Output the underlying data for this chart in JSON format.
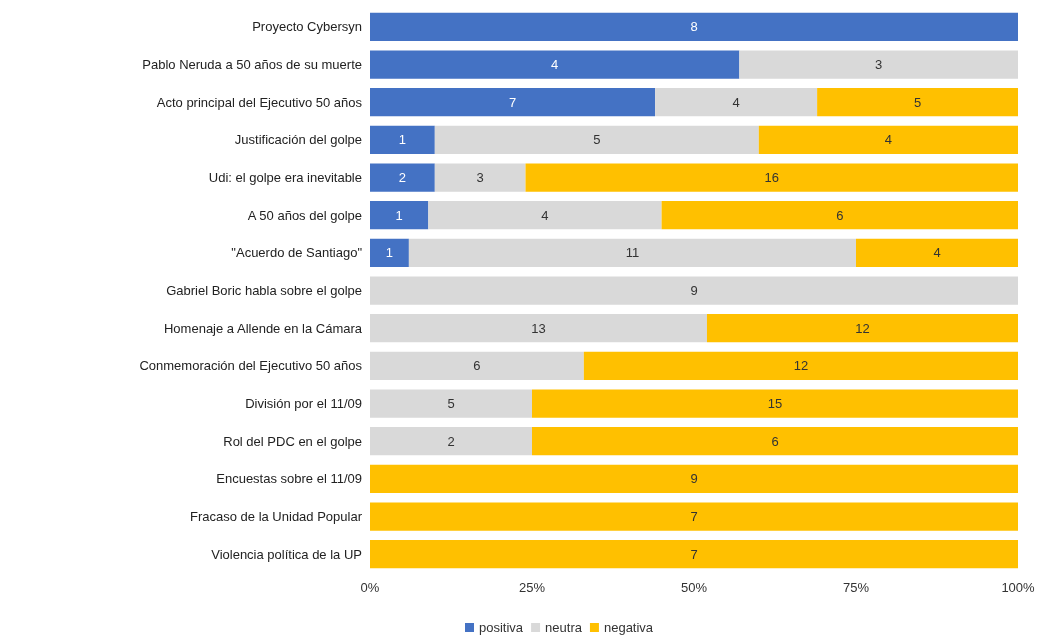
{
  "chart_data": {
    "type": "bar",
    "orientation": "horizontal",
    "stacked": true,
    "categories": [
      "Proyecto Cybersyn",
      "Pablo Neruda a 50 años de su muerte",
      "Acto principal del Ejecutivo 50 años",
      "Justificación del golpe",
      "Udi: el golpe era inevitable",
      "A 50 años del golpe",
      "\"Acuerdo de Santiago\"",
      "Gabriel Boric habla sobre el golpe",
      "Homenaje a Allende en la Cámara",
      "Conmemoración del Ejecutivo 50 años",
      "División por el 11/09",
      "Rol del PDC en el golpe",
      "Encuestas sobre el 11/09",
      "Fracaso de la Unidad Popular",
      "Violencia política de la UP"
    ],
    "series": [
      {
        "name": "positiva",
        "color": "#4472c4",
        "values": [
          100,
          57,
          44,
          10,
          10,
          9,
          6,
          null,
          null,
          null,
          null,
          null,
          null,
          null,
          null
        ]
      },
      {
        "name": "neutra",
        "color": "#d9d9d9",
        "values": [
          null,
          43,
          25,
          50,
          14,
          36,
          69,
          100,
          52,
          33,
          25,
          25,
          null,
          null,
          null
        ]
      },
      {
        "name": "negativa",
        "color": "#ffc000",
        "values": [
          null,
          null,
          31,
          40,
          76,
          55,
          25,
          null,
          48,
          67,
          75,
          75,
          100,
          100,
          100
        ]
      }
    ],
    "annotations": [
      {
        "text": "8",
        "x": 50,
        "y": "Proyecto Cybersyn"
      },
      {
        "text": "4",
        "x": 28.5,
        "y": "Pablo Neruda a 50 años de su muerte"
      },
      {
        "text": "3",
        "x": 78.5,
        "y": "Pablo Neruda a 50 años de su muerte"
      },
      {
        "text": "7",
        "x": 22,
        "y": "Acto principal del Ejecutivo 50 años"
      },
      {
        "text": "4",
        "x": 56.5,
        "y": "Acto principal del Ejecutivo 50 años"
      },
      {
        "text": "5",
        "x": 84.5,
        "y": "Acto principal del Ejecutivo 50 años"
      },
      {
        "text": "1",
        "x": 5,
        "y": "Justificación del golpe"
      },
      {
        "text": "5",
        "x": 35,
        "y": "Justificación del golpe"
      },
      {
        "text": "4",
        "x": 80,
        "y": "Justificación del golpe"
      },
      {
        "text": "2",
        "x": 5,
        "y": "Udi: el golpe era inevitable"
      },
      {
        "text": "3",
        "x": 17,
        "y": "Udi: el golpe era inevitable"
      },
      {
        "text": "16",
        "x": 62,
        "y": "Udi: el golpe era inevitable"
      },
      {
        "text": "1",
        "x": 4.5,
        "y": "A 50 años del golpe"
      },
      {
        "text": "4",
        "x": 27,
        "y": "A 50 años del golpe"
      },
      {
        "text": "6",
        "x": 72.5,
        "y": "A 50 años del golpe"
      },
      {
        "text": "1",
        "x": 3,
        "y": "\"Acuerdo de Santiago\""
      },
      {
        "text": "11",
        "x": 40.5,
        "y": "\"Acuerdo de Santiago\""
      },
      {
        "text": "4",
        "x": 87.5,
        "y": "\"Acuerdo de Santiago\""
      },
      {
        "text": "9",
        "x": 50,
        "y": "Gabriel Boric habla sobre el golpe"
      },
      {
        "text": "13",
        "x": 26,
        "y": "Homenaje a Allende en la Cámara"
      },
      {
        "text": "12",
        "x": 76,
        "y": "Homenaje a Allende en la Cámara"
      },
      {
        "text": "6",
        "x": 16.5,
        "y": "Conmemoración del Ejecutivo 50 años"
      },
      {
        "text": "12",
        "x": 66.5,
        "y": "Conmemoración del Ejecutivo 50 años"
      },
      {
        "text": "5",
        "x": 12.5,
        "y": "División por el 11/09"
      },
      {
        "text": "15",
        "x": 62.5,
        "y": "División por el 11/09"
      },
      {
        "text": "2",
        "x": 12.5,
        "y": "Rol del PDC en el golpe"
      },
      {
        "text": "6",
        "x": 62.5,
        "y": "Rol del PDC en el golpe"
      },
      {
        "text": "9",
        "x": 50,
        "y": "Encuestas sobre el 11/09"
      },
      {
        "text": "7",
        "x": 50,
        "y": "Fracaso de la Unidad Popular"
      },
      {
        "text": "7",
        "x": 50,
        "y": "Violencia política de la UP"
      }
    ],
    "xlim": [
      0,
      100
    ],
    "xticks": [
      {
        "value": 0,
        "label": "0%"
      },
      {
        "value": 25,
        "label": "25%"
      },
      {
        "value": 50,
        "label": "50%"
      },
      {
        "value": 75,
        "label": "75%"
      },
      {
        "value": 100,
        "label": "100%"
      }
    ],
    "grid": false,
    "legend": "bottom"
  }
}
